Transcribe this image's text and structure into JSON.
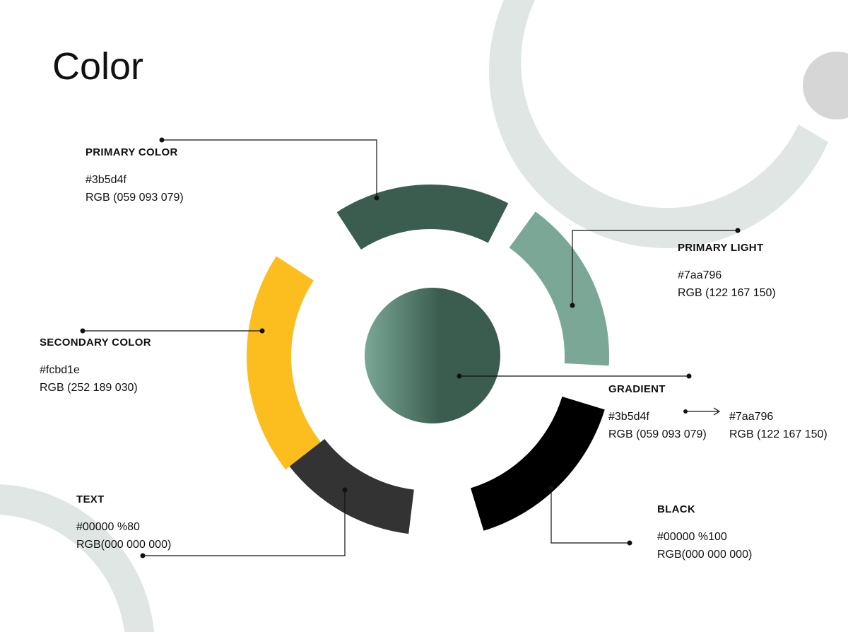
{
  "title": "Color",
  "colors": {
    "primary": "#3b5d4f",
    "primary_light": "#7aa796",
    "secondary": "#fcbd1e",
    "text": "#333333",
    "black": "#000000",
    "background_shape": "#e0e6e3",
    "background_dot": "#d6d6d6",
    "connector": "#111111"
  },
  "swatches": {
    "primary": {
      "name": "PRIMARY COLOR",
      "hex": "#3b5d4f",
      "rgb": "RGB (059 093 079)"
    },
    "primary_light": {
      "name": "PRIMARY LIGHT",
      "hex": "#7aa796",
      "rgb": "RGB (122 167 150)"
    },
    "secondary": {
      "name": "SECONDARY COLOR",
      "hex": "#fcbd1e",
      "rgb": "RGB (252 189 030)"
    },
    "gradient": {
      "name": "GRADIENT",
      "from_hex": "#3b5d4f",
      "from_rgb": "RGB (059 093 079)",
      "to_hex": "#7aa796",
      "to_rgb": "RGB (122 167 150)"
    },
    "text": {
      "name": "TEXT",
      "hex": "#00000 %80",
      "rgb": "RGB(000 000 000)"
    },
    "black": {
      "name": "BLACK",
      "hex": "#00000 %100",
      "rgb": "RGB(000 000 000)"
    }
  }
}
